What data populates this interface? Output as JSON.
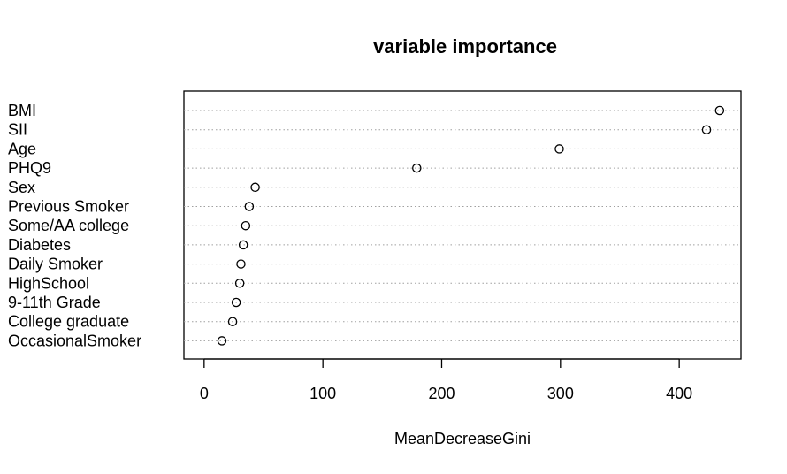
{
  "chart_data": {
    "type": "scatter",
    "title": "variable importance",
    "xlabel": "MeanDecreaseGini",
    "ylabel": "",
    "xlim": [
      -17,
      452
    ],
    "xticks": [
      0,
      100,
      200,
      300,
      400
    ],
    "grid": "dotted horizontal guide lines",
    "legend": "none",
    "categories": [
      "BMI",
      "SII",
      "Age",
      "PHQ9",
      "Sex",
      "Previous Smoker",
      "Some/AA college",
      "Diabetes",
      "Daily Smoker",
      "HighSchool",
      "9-11th Grade",
      "College graduate",
      "OccasionalSmoker"
    ],
    "values": [
      434,
      423,
      299,
      179,
      43,
      38,
      35,
      33,
      31,
      30,
      27,
      24,
      15
    ],
    "colors": {
      "marker": "#000000",
      "guide": "#a0a0a0",
      "frame": "#000000"
    }
  }
}
